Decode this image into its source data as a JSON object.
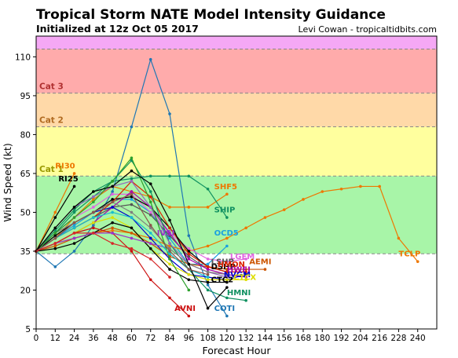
{
  "header": {
    "title": "Tropical Storm NATE Model Intensity Guidance",
    "subtitle": "Initialized at 12z Oct 05 2017",
    "credit": "Levi Cowan - tropicaltidbits.com"
  },
  "chart_data": {
    "type": "line",
    "xlabel": "Forecast Hour",
    "ylabel": "Wind Speed (kt)",
    "xlim": [
      0,
      252
    ],
    "ylim": [
      5,
      118
    ],
    "xticks": [
      0,
      12,
      24,
      36,
      48,
      60,
      72,
      84,
      96,
      108,
      120,
      132,
      144,
      156,
      168,
      180,
      192,
      204,
      216,
      228,
      240
    ],
    "yticks": [
      5,
      20,
      35,
      50,
      65,
      80,
      95,
      110
    ],
    "grid": false,
    "bands": [
      {
        "label": "",
        "from": 113,
        "to": 118,
        "color": "#f5a8f5"
      },
      {
        "label": "Cat 3",
        "from": 96,
        "to": 113,
        "color": "#ffabab",
        "label_color": "#b03030",
        "dashed_top": true
      },
      {
        "label": "Cat 2",
        "from": 83,
        "to": 96,
        "color": "#ffd9a8",
        "label_color": "#b06a20",
        "dashed_top": true
      },
      {
        "label": "Cat 1",
        "from": 64,
        "to": 83,
        "color": "#ffff9e",
        "label_color": "#999900",
        "dashed_top": true
      },
      {
        "label": "",
        "from": 34,
        "to": 64,
        "color": "#a8f5a8",
        "dashed_top": true
      },
      {
        "label": "",
        "from": 5,
        "to": 34,
        "color": "#ffffff",
        "dashed_top": true
      }
    ],
    "series": [
      {
        "name": "RI30",
        "color": "#ee7700",
        "x": [
          0,
          12,
          24
        ],
        "y": [
          35,
          50,
          65
        ],
        "label_at": [
          12,
          67
        ]
      },
      {
        "name": "RI25",
        "color": "#000000",
        "x": [
          0,
          12,
          24
        ],
        "y": [
          35,
          48,
          60
        ],
        "label_at": [
          14,
          62
        ]
      },
      {
        "name": "COTI",
        "color": "#1f77b4",
        "x": [
          0,
          12,
          24,
          36,
          48,
          60,
          72,
          84,
          96,
          108,
          120
        ],
        "y": [
          35,
          29,
          35,
          45,
          58,
          83,
          109,
          88,
          41,
          22,
          10
        ],
        "label_at": [
          112,
          12
        ]
      },
      {
        "name": "SHF5",
        "color": "#ee7700",
        "x": [
          0,
          12,
          24,
          36,
          48,
          60,
          72,
          84,
          96,
          108,
          120
        ],
        "y": [
          35,
          40,
          48,
          55,
          60,
          58,
          56,
          52,
          52,
          52,
          57
        ],
        "label_at": [
          112,
          59
        ]
      },
      {
        "name": "SHIP",
        "color": "#109060",
        "x": [
          0,
          12,
          24,
          36,
          48,
          60,
          72,
          84,
          96,
          108,
          120
        ],
        "y": [
          35,
          43,
          51,
          58,
          62,
          63,
          64,
          64,
          64,
          59,
          48
        ],
        "label_at": [
          112,
          50
        ]
      },
      {
        "name": "OCD5",
        "color": "#1aa0e0",
        "x": [
          0,
          12,
          24,
          36,
          48,
          60,
          72,
          84,
          96,
          108,
          120
        ],
        "y": [
          35,
          40,
          45,
          50,
          55,
          55,
          50,
          40,
          30,
          30,
          37
        ],
        "label_at": [
          112,
          41
        ]
      },
      {
        "name": "TCLP",
        "color": "#ee7700",
        "x": [
          0,
          12,
          24,
          36,
          48,
          60,
          72,
          84,
          96,
          108,
          120,
          132,
          144,
          156,
          168,
          180,
          192,
          204,
          216,
          228,
          240
        ],
        "y": [
          35,
          38,
          40,
          42,
          43,
          42,
          40,
          37,
          35,
          37,
          40,
          44,
          48,
          51,
          55,
          58,
          59,
          60,
          60,
          40,
          31
        ],
        "label_at": [
          228,
          33
        ]
      },
      {
        "name": "LGEM",
        "color": "#e066e0",
        "x": [
          0,
          12,
          24,
          36,
          48,
          60,
          72,
          84,
          96,
          108,
          120,
          132
        ],
        "y": [
          35,
          42,
          48,
          52,
          57,
          57,
          50,
          42,
          36,
          32,
          31,
          32
        ],
        "label_at": [
          122,
          32
        ]
      },
      {
        "name": "AEMI",
        "color": "#cc5500",
        "x": [
          0,
          12,
          24,
          36,
          48,
          60,
          72,
          84,
          96,
          108,
          120,
          132,
          144
        ],
        "y": [
          35,
          37,
          40,
          42,
          44,
          42,
          38,
          33,
          30,
          29,
          28,
          28,
          28
        ],
        "label_at": [
          134,
          30
        ]
      },
      {
        "name": "DSHP",
        "color": "#000000",
        "x": [
          0,
          12,
          24,
          36,
          48,
          60,
          72,
          84,
          96,
          108,
          120
        ],
        "y": [
          35,
          41,
          46,
          50,
          55,
          56,
          52,
          44,
          35,
          29,
          27
        ],
        "label_at": [
          110,
          28
        ]
      },
      {
        "name": "LSHP",
        "color": "#555555",
        "x": [
          0,
          12,
          24,
          36,
          48,
          60,
          72,
          84,
          96,
          108,
          120
        ],
        "y": [
          35,
          40,
          44,
          48,
          52,
          53,
          49,
          41,
          33,
          28,
          26
        ],
        "label_at": [
          110,
          30
        ]
      },
      {
        "name": "HWFI",
        "color": "#aa00aa",
        "x": [
          0,
          12,
          24,
          36,
          48,
          60,
          72,
          84,
          96,
          108,
          120,
          132
        ],
        "y": [
          35,
          38,
          42,
          46,
          52,
          58,
          52,
          42,
          32,
          28,
          26,
          25
        ],
        "label_at": [
          120,
          27
        ]
      },
      {
        "name": "NVGM",
        "color": "#0000cc",
        "x": [
          0,
          12,
          24,
          36,
          48,
          60,
          72,
          84,
          96,
          108,
          120,
          132
        ],
        "y": [
          35,
          40,
          46,
          50,
          52,
          48,
          40,
          32,
          26,
          25,
          24,
          26
        ],
        "label_at": [
          118,
          25
        ]
      },
      {
        "name": "HMON",
        "color": "#dd2200",
        "x": [
          0,
          12,
          24,
          36,
          48,
          60,
          72,
          84,
          96,
          108,
          120,
          132
        ],
        "y": [
          35,
          40,
          44,
          48,
          54,
          62,
          56,
          44,
          34,
          29,
          27,
          27
        ],
        "label_at": [
          114,
          29
        ]
      },
      {
        "name": "CTCX",
        "color": "#dddd00",
        "x": [
          0,
          12,
          24,
          36,
          48,
          60,
          72,
          84,
          96,
          108,
          120,
          132
        ],
        "y": [
          35,
          38,
          42,
          46,
          48,
          44,
          36,
          30,
          26,
          24,
          24,
          24
        ],
        "label_at": [
          124,
          24
        ]
      },
      {
        "name": "CTC2",
        "color": "#000000",
        "x": [
          0,
          12,
          24,
          36,
          48,
          60,
          72,
          84,
          96,
          108,
          120
        ],
        "y": [
          35,
          36,
          38,
          42,
          46,
          44,
          36,
          28,
          24,
          23,
          23
        ],
        "label_at": [
          110,
          23
        ]
      },
      {
        "name": "HMNI",
        "color": "#109060",
        "x": [
          0,
          12,
          24,
          36,
          48,
          60,
          72,
          84,
          96,
          108,
          120,
          132
        ],
        "y": [
          35,
          42,
          50,
          56,
          62,
          70,
          58,
          38,
          28,
          20,
          17,
          16
        ],
        "label_at": [
          120,
          18
        ]
      },
      {
        "name": "AVNI",
        "color": "#cc1010",
        "x": [
          0,
          12,
          24,
          36,
          48,
          60,
          72,
          84,
          96
        ],
        "y": [
          35,
          38,
          42,
          44,
          42,
          35,
          24,
          17,
          10
        ],
        "label_at": [
          87,
          12
        ]
      },
      {
        "name": "IVSI",
        "color": "#9933cc",
        "x": [
          0,
          12,
          24,
          36,
          48,
          60,
          72,
          84
        ],
        "y": [
          35,
          38,
          40,
          42,
          42,
          40,
          38,
          36
        ],
        "label_at": [
          76,
          41
        ]
      },
      {
        "name": "",
        "color": "#9467bd",
        "x": [
          0,
          12,
          24,
          36,
          48,
          60,
          72,
          84,
          96,
          108,
          120
        ],
        "y": [
          35,
          44,
          52,
          56,
          60,
          62,
          52,
          38,
          30,
          27,
          25
        ],
        "label_at": null
      },
      {
        "name": "",
        "color": "#7f7f7f",
        "x": [
          0,
          12,
          24,
          36,
          48,
          60,
          72,
          84,
          96,
          108,
          120
        ],
        "y": [
          35,
          42,
          46,
          50,
          54,
          50,
          44,
          36,
          30,
          27,
          26
        ],
        "label_at": null
      },
      {
        "name": "",
        "color": "#2ca02c",
        "x": [
          0,
          12,
          24,
          36,
          48,
          60,
          72,
          84,
          96
        ],
        "y": [
          35,
          42,
          48,
          54,
          62,
          71,
          54,
          32,
          20
        ],
        "label_at": null
      },
      {
        "name": "",
        "color": "#17becf",
        "x": [
          0,
          12,
          24,
          36,
          48,
          60,
          72,
          84,
          96,
          108
        ],
        "y": [
          35,
          40,
          44,
          48,
          50,
          48,
          42,
          34,
          28,
          25
        ],
        "label_at": null
      },
      {
        "name": "",
        "color": "#000000",
        "x": [
          0,
          12,
          24,
          36,
          48,
          60,
          72,
          84,
          96,
          108,
          120
        ],
        "y": [
          35,
          44,
          52,
          58,
          60,
          66,
          61,
          47,
          30,
          13,
          21
        ],
        "label_at": null
      },
      {
        "name": "",
        "color": "#8c564b",
        "x": [
          0,
          12,
          24,
          36,
          48,
          60,
          72,
          84,
          96,
          108
        ],
        "y": [
          35,
          40,
          46,
          50,
          54,
          57,
          45,
          35,
          28,
          26
        ],
        "label_at": null
      },
      {
        "name": "",
        "color": "#d62728",
        "x": [
          0,
          12,
          24,
          36,
          48,
          60,
          72,
          84
        ],
        "y": [
          35,
          38,
          42,
          42,
          38,
          36,
          32,
          25
        ],
        "label_at": null
      }
    ]
  }
}
